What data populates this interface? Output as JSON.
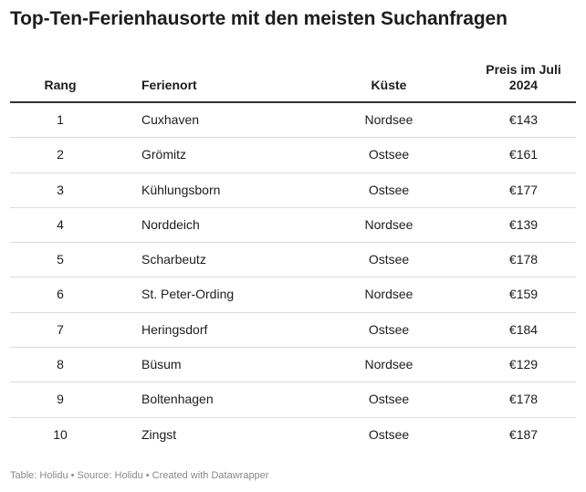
{
  "title": "Top-Ten-Ferienhausorte mit den meisten Suchanfragen",
  "chart_data": {
    "type": "table",
    "title": "Top-Ten-Ferienhausorte mit den meisten Suchanfragen",
    "columns": [
      "Rang",
      "Ferienort",
      "Küste",
      "Preis im Juli\n2024"
    ],
    "rows": [
      [
        "1",
        "Cuxhaven",
        "Nordsee",
        "€143"
      ],
      [
        "2",
        "Grömitz",
        "Ostsee",
        "€161"
      ],
      [
        "3",
        "Kühlungsborn",
        "Ostsee",
        "€177"
      ],
      [
        "4",
        "Norddeich",
        "Nordsee",
        "€139"
      ],
      [
        "5",
        "Scharbeutz",
        "Ostsee",
        "€178"
      ],
      [
        "6",
        "St. Peter-Ording",
        "Nordsee",
        "€159"
      ],
      [
        "7",
        "Heringsdorf",
        "Ostsee",
        "€184"
      ],
      [
        "8",
        "Büsum",
        "Nordsee",
        "€129"
      ],
      [
        "9",
        "Boltenhagen",
        "Ostsee",
        "€178"
      ],
      [
        "10",
        "Zingst",
        "Ostsee",
        "€187"
      ]
    ]
  },
  "footer": "Table: Holidu • Source: Holidu • Created with Datawrapper"
}
